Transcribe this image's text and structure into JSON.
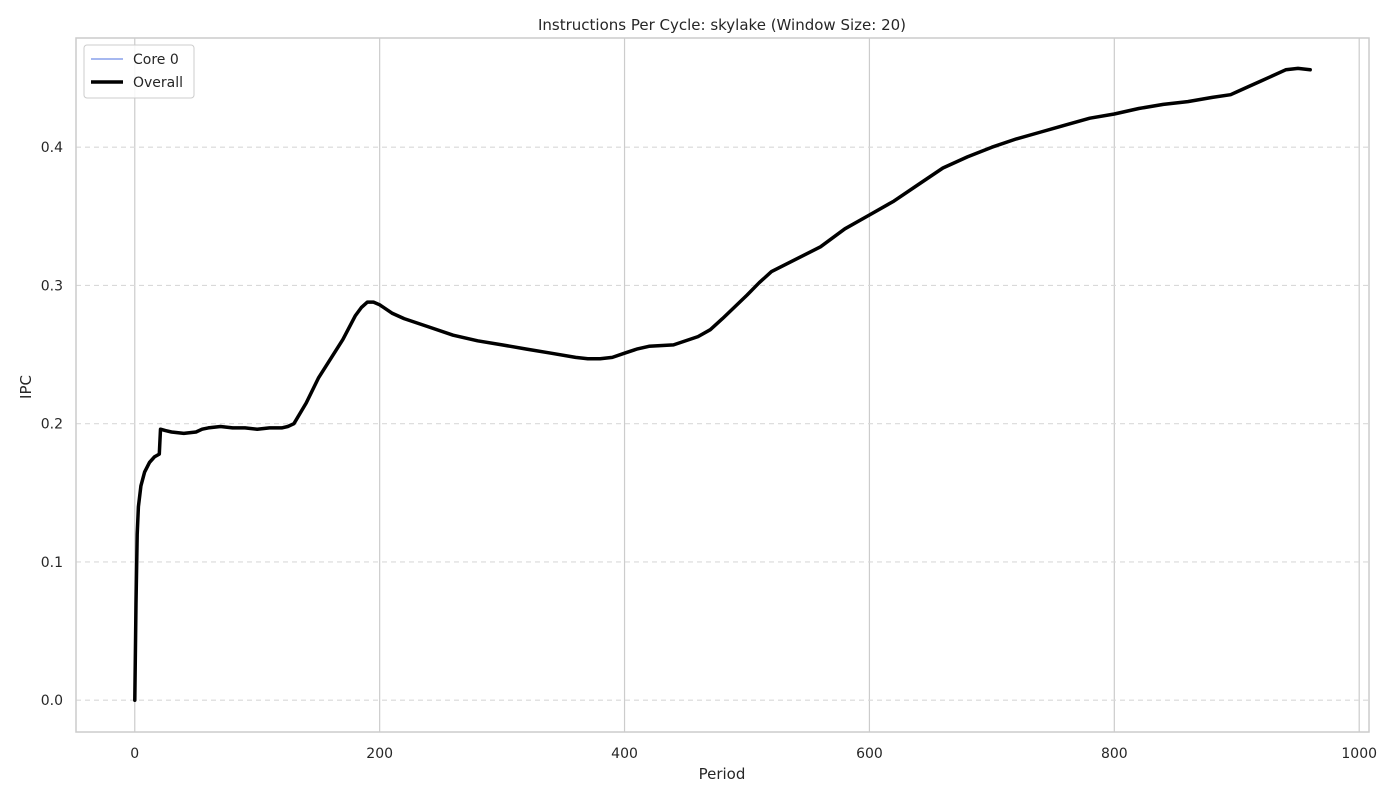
{
  "chart_data": {
    "type": "line",
    "title": "Instructions Per Cycle: skylake (Window Size: 20)",
    "xlabel": "Period",
    "ylabel": "IPC",
    "xlim": [
      -48,
      1008
    ],
    "ylim": [
      -0.023,
      0.479
    ],
    "xticks": [
      0,
      200,
      400,
      600,
      800,
      1000
    ],
    "yticks": [
      0.0,
      0.1,
      0.2,
      0.3,
      0.4
    ],
    "xtick_labels": [
      "0",
      "200",
      "400",
      "600",
      "800",
      "1000"
    ],
    "ytick_labels": [
      "0.0",
      "0.1",
      "0.2",
      "0.3",
      "0.4"
    ],
    "grid": {
      "x": "solid",
      "y": "dashed"
    },
    "legend_position": "top-left",
    "series": [
      {
        "name": "Core 0",
        "color": "#4c72e0",
        "style": "thin",
        "x": [
          0,
          1,
          2,
          3,
          5,
          8,
          12,
          16,
          20,
          21,
          25,
          30,
          40,
          50,
          55,
          60,
          70,
          80,
          90,
          100,
          110,
          120,
          125,
          130,
          140,
          150,
          160,
          170,
          180,
          185,
          190,
          195,
          200,
          210,
          220,
          240,
          260,
          280,
          300,
          320,
          340,
          360,
          370,
          380,
          390,
          400,
          410,
          420,
          440,
          460,
          470,
          480,
          500,
          510,
          520,
          540,
          560,
          580,
          600,
          620,
          640,
          660,
          680,
          700,
          720,
          740,
          760,
          780,
          800,
          820,
          840,
          860,
          880,
          895,
          900,
          910,
          920,
          940,
          950,
          960
        ],
        "y": [
          0.0,
          0.07,
          0.12,
          0.14,
          0.155,
          0.165,
          0.172,
          0.176,
          0.178,
          0.196,
          0.195,
          0.194,
          0.193,
          0.194,
          0.196,
          0.197,
          0.198,
          0.197,
          0.197,
          0.196,
          0.197,
          0.197,
          0.198,
          0.2,
          0.215,
          0.233,
          0.247,
          0.261,
          0.278,
          0.284,
          0.288,
          0.288,
          0.286,
          0.28,
          0.276,
          0.27,
          0.264,
          0.26,
          0.257,
          0.254,
          0.251,
          0.248,
          0.247,
          0.247,
          0.248,
          0.251,
          0.254,
          0.256,
          0.257,
          0.263,
          0.268,
          0.276,
          0.293,
          0.302,
          0.31,
          0.319,
          0.328,
          0.341,
          0.351,
          0.361,
          0.373,
          0.385,
          0.393,
          0.4,
          0.406,
          0.411,
          0.416,
          0.421,
          0.424,
          0.428,
          0.431,
          0.433,
          0.436,
          0.438,
          0.44,
          0.444,
          0.448,
          0.456,
          0.457,
          0.456
        ]
      },
      {
        "name": "Overall",
        "color": "#000000",
        "style": "thick",
        "x": [
          0,
          1,
          2,
          3,
          5,
          8,
          12,
          16,
          20,
          21,
          25,
          30,
          40,
          50,
          55,
          60,
          70,
          80,
          90,
          100,
          110,
          120,
          125,
          130,
          140,
          150,
          160,
          170,
          180,
          185,
          190,
          195,
          200,
          210,
          220,
          240,
          260,
          280,
          300,
          320,
          340,
          360,
          370,
          380,
          390,
          400,
          410,
          420,
          440,
          460,
          470,
          480,
          500,
          510,
          520,
          540,
          560,
          580,
          600,
          620,
          640,
          660,
          680,
          700,
          720,
          740,
          760,
          780,
          800,
          820,
          840,
          860,
          880,
          895,
          900,
          910,
          920,
          940,
          950,
          960
        ],
        "y": [
          0.0,
          0.07,
          0.12,
          0.14,
          0.155,
          0.165,
          0.172,
          0.176,
          0.178,
          0.196,
          0.195,
          0.194,
          0.193,
          0.194,
          0.196,
          0.197,
          0.198,
          0.197,
          0.197,
          0.196,
          0.197,
          0.197,
          0.198,
          0.2,
          0.215,
          0.233,
          0.247,
          0.261,
          0.278,
          0.284,
          0.288,
          0.288,
          0.286,
          0.28,
          0.276,
          0.27,
          0.264,
          0.26,
          0.257,
          0.254,
          0.251,
          0.248,
          0.247,
          0.247,
          0.248,
          0.251,
          0.254,
          0.256,
          0.257,
          0.263,
          0.268,
          0.276,
          0.293,
          0.302,
          0.31,
          0.319,
          0.328,
          0.341,
          0.351,
          0.361,
          0.373,
          0.385,
          0.393,
          0.4,
          0.406,
          0.411,
          0.416,
          0.421,
          0.424,
          0.428,
          0.431,
          0.433,
          0.436,
          0.438,
          0.44,
          0.444,
          0.448,
          0.456,
          0.457,
          0.456
        ]
      }
    ]
  }
}
